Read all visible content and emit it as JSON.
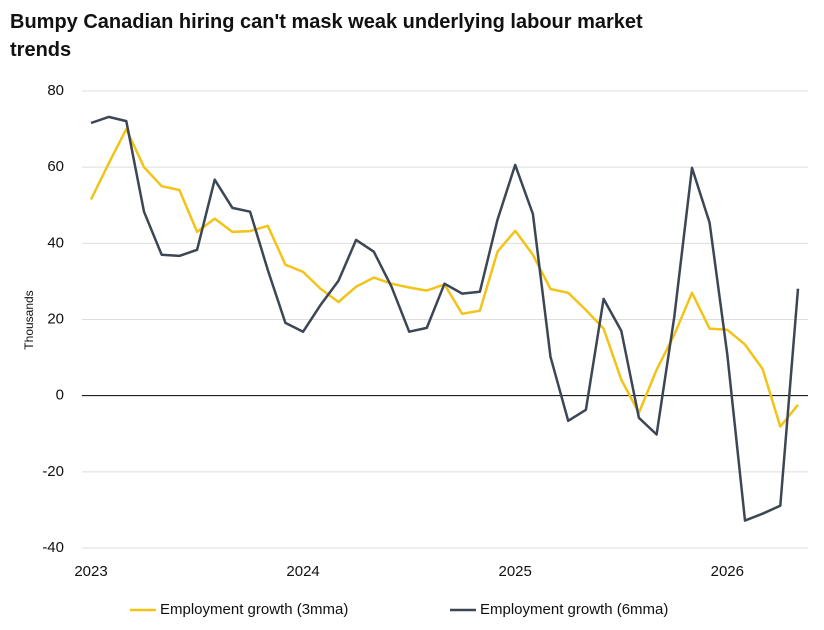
{
  "chart_data": {
    "type": "line",
    "title": "Bumpy Canadian hiring can't mask weak underlying labour market trends",
    "y_label": "Thousands",
    "categories": [
      "2023",
      null,
      null,
      null,
      null,
      null,
      null,
      null,
      null,
      null,
      null,
      null,
      "2024",
      null,
      null,
      null,
      null,
      null,
      null,
      null,
      null,
      null,
      null,
      null,
      "2025",
      null,
      null,
      null,
      null,
      null,
      null,
      null,
      null,
      null,
      null,
      null,
      "2026",
      null,
      null,
      null,
      null
    ],
    "series": [
      {
        "name": "Employment growth (3mma)",
        "color": "#f2c318",
        "values": [
          51.5,
          61,
          70,
          60,
          55,
          54,
          43,
          46.5,
          43,
          43.2,
          44.6,
          34.4,
          32.5,
          28,
          24.6,
          28.6,
          31,
          29.4,
          28.4,
          27.6,
          29.2,
          21.5,
          22.3,
          37.8,
          43.3,
          37,
          28,
          27,
          22.5,
          17.6,
          4.2,
          -4.5,
          6.8,
          16,
          27,
          17.6,
          17.3,
          13.4,
          7,
          -8.1,
          -2.4
        ]
      },
      {
        "name": "Employment growth (6mma)",
        "color": "#3d4654",
        "values": [
          71.6,
          73.2,
          72.1,
          48.3,
          37,
          36.7,
          38.3,
          56.7,
          49.3,
          48.3,
          33,
          19.1,
          16.8,
          23.9,
          30.2,
          40.9,
          37.8,
          28.6,
          16.8,
          17.8,
          29.4,
          26.8,
          27.3,
          46.2,
          60.6,
          47.7,
          10.2,
          -6.6,
          -3.7,
          25.4,
          17,
          -5.8,
          -10.2,
          20.7,
          59.8,
          45.4,
          10.8,
          -32.8,
          -31,
          -28.9,
          28.1
        ]
      }
    ],
    "ylim": [
      -40,
      80
    ],
    "yticks": [
      -40,
      -20,
      0,
      20,
      40,
      60,
      80
    ],
    "grid": true,
    "legend": "bottom"
  }
}
